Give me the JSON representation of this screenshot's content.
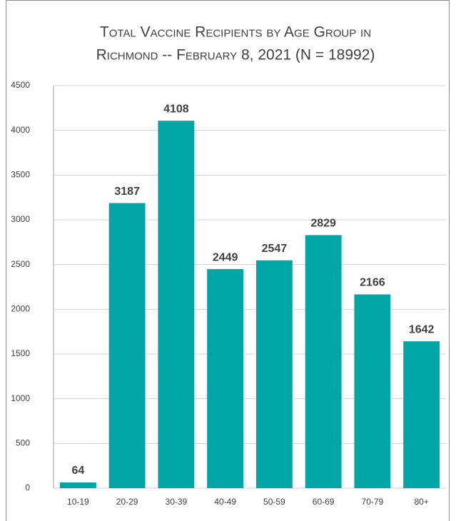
{
  "chart_data": {
    "type": "bar",
    "title": [
      "Total Vaccine Recipients by Age Group in",
      "Richmond -- February 8, 2021 (N = 18992)"
    ],
    "categories": [
      "10-19",
      "20-29",
      "30-39",
      "40-49",
      "50-59",
      "60-69",
      "70-79",
      "80+"
    ],
    "values": [
      64,
      3187,
      4108,
      2449,
      2547,
      2829,
      2166,
      1642
    ],
    "color": "#00a5a5",
    "ylim": [
      0,
      4500
    ],
    "yticks": [
      0,
      500,
      1000,
      1500,
      2000,
      2500,
      3000,
      3500,
      4000,
      4500
    ],
    "grid": true
  }
}
